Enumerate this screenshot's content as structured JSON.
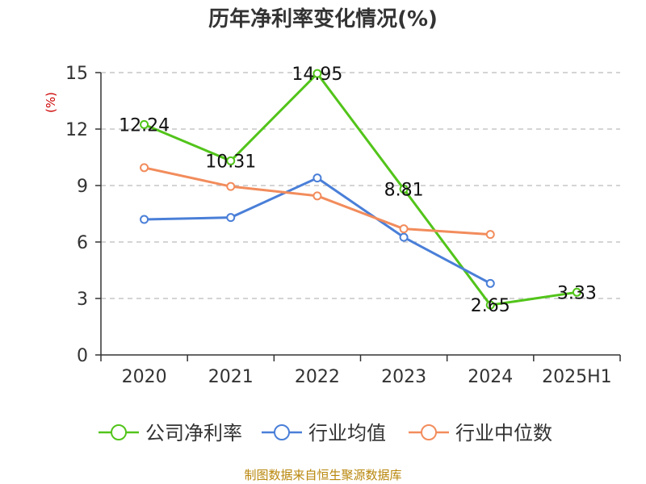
{
  "chart_data": {
    "type": "line",
    "title": "历年净利率变化情况(%)",
    "ylabel": "(%)",
    "xlabel": "",
    "categories": [
      "2020",
      "2021",
      "2022",
      "2023",
      "2024",
      "2025H1"
    ],
    "ylim": [
      0,
      15
    ],
    "yticks": [
      0,
      3,
      6,
      9,
      12,
      15
    ],
    "grid": true,
    "legend_position": "bottom",
    "series": [
      {
        "name": "公司净利率",
        "color": "#52c41a",
        "values": [
          12.24,
          10.31,
          14.95,
          8.81,
          2.65,
          3.33
        ],
        "show_labels": true
      },
      {
        "name": "行业均值",
        "color": "#4a7fd8",
        "values": [
          7.2,
          7.3,
          9.4,
          6.25,
          3.8,
          null
        ],
        "show_labels": false
      },
      {
        "name": "行业中位数",
        "color": "#f28c5c",
        "values": [
          9.95,
          8.95,
          8.45,
          6.7,
          6.4,
          null
        ],
        "show_labels": false
      }
    ],
    "unit_color": "#cc0000",
    "source": "制图数据来自恒生聚源数据库",
    "source_color": "#b8860b"
  }
}
